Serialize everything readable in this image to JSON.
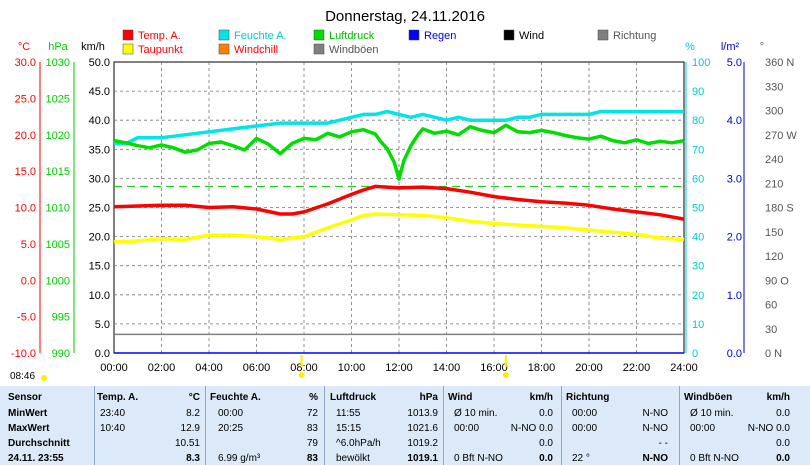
{
  "chart_data": {
    "type": "line",
    "title": "Donnerstag, 24.11.2016",
    "x_ticks": [
      "00:00",
      "02:00",
      "04:00",
      "06:00",
      "08:00",
      "10:00",
      "12:00",
      "14:00",
      "16:00",
      "18:00",
      "20:00",
      "22:00",
      "24:00"
    ],
    "xlim": [
      0,
      24
    ],
    "legend": [
      {
        "name": "Temp. A.",
        "color": "#ff0000"
      },
      {
        "name": "Feuchte A.",
        "color": "#00e5e5"
      },
      {
        "name": "Luftdruck",
        "color": "#00dd00"
      },
      {
        "name": "Regen",
        "color": "#0000ff"
      },
      {
        "name": "Wind",
        "color": "#000000"
      },
      {
        "name": "Richtung",
        "color": "#808080"
      },
      {
        "name": "Taupunkt",
        "color": "#ffff00"
      },
      {
        "name": "Windchill",
        "color": "#ff8000"
      },
      {
        "name": "Windböen",
        "color": "#808080"
      }
    ],
    "axes": {
      "temp": {
        "unit": "°C",
        "ticks": [
          "30.0",
          "25.0",
          "20.0",
          "15.0",
          "10.0",
          "5.0",
          "0.0",
          "-5.0",
          "-10.0"
        ],
        "range": [
          -10,
          30
        ],
        "color": "#ff0000"
      },
      "pressure": {
        "unit": "hPa",
        "ticks": [
          "1030",
          "1025",
          "1020",
          "1015",
          "1010",
          "1005",
          "1000",
          "995",
          "990"
        ],
        "range": [
          990,
          1030
        ],
        "color": "#00cc00"
      },
      "wind": {
        "unit": "km/h",
        "ticks": [
          "50.0",
          "45.0",
          "40.0",
          "35.0",
          "30.0",
          "25.0",
          "20.0",
          "15.0",
          "10.0",
          "5.0",
          "0.0"
        ],
        "range": [
          0,
          50
        ],
        "color": "#000000"
      },
      "humidity": {
        "unit": "%",
        "ticks": [
          "100",
          "90",
          "80",
          "70",
          "60",
          "50",
          "40",
          "30",
          "20",
          "10",
          "0"
        ],
        "range": [
          0,
          100
        ],
        "color": "#00cccc"
      },
      "rain": {
        "unit": "l/m²",
        "ticks": [
          "5.0",
          "4.0",
          "3.0",
          "2.0",
          "1.0",
          "0.0"
        ],
        "range": [
          0,
          5
        ],
        "color": "#0000cc"
      },
      "direction": {
        "unit": "°",
        "ticks": [
          "360 N",
          "330",
          "300",
          "270 W",
          "240",
          "210",
          "180 S",
          "150",
          "120",
          "90 O",
          "60",
          "30",
          "0   N"
        ],
        "range": [
          0,
          360
        ],
        "color": "#555555"
      }
    },
    "series": [
      {
        "name": "Feuchte A.",
        "axis": "humidity",
        "color": "#00e5e5",
        "x": [
          0,
          0.5,
          1,
          2,
          3,
          4,
          5,
          6,
          7,
          8,
          9,
          9.5,
          10,
          10.5,
          11,
          11.5,
          12,
          12.5,
          13,
          13.5,
          14,
          14.5,
          15,
          16,
          16.5,
          17,
          17.5,
          18,
          19,
          20,
          20.5,
          21,
          22,
          23,
          24
        ],
        "y": [
          72,
          72,
          74,
          74,
          75,
          76,
          77,
          78,
          79,
          79,
          79,
          80,
          81,
          82,
          82,
          83,
          82,
          81,
          82,
          81,
          80,
          81,
          80,
          80,
          80,
          81,
          81,
          82,
          82,
          82,
          83,
          83,
          83,
          83,
          83
        ]
      },
      {
        "name": "Luftdruck",
        "axis": "pressure",
        "color": "#00dd00",
        "x": [
          0,
          0.5,
          1,
          1.5,
          2,
          2.5,
          3,
          3.5,
          4,
          4.5,
          5,
          5.5,
          6,
          6.5,
          7,
          7.5,
          8,
          8.5,
          9,
          9.5,
          10,
          10.5,
          11,
          11.2,
          11.5,
          11.8,
          12,
          12.2,
          12.5,
          12.8,
          13,
          13.5,
          14,
          14.5,
          15,
          15.5,
          16,
          16.5,
          17,
          17.5,
          18,
          18.5,
          19,
          19.5,
          20,
          20.5,
          21,
          21.5,
          22,
          22.5,
          23,
          23.5,
          24
        ],
        "y": [
          1019.2,
          1018.9,
          1018.5,
          1018.2,
          1018.6,
          1018.2,
          1017.6,
          1017.9,
          1018.8,
          1019.0,
          1018.5,
          1017.9,
          1019.5,
          1018.7,
          1017.4,
          1018.8,
          1019.5,
          1019.3,
          1020.2,
          1019.7,
          1020.4,
          1020.7,
          1020.1,
          1019.2,
          1018.1,
          1016.2,
          1013.9,
          1016.4,
          1018.5,
          1020.0,
          1020.8,
          1020.2,
          1020.5,
          1020.0,
          1021.1,
          1020.6,
          1020.3,
          1021.3,
          1020.4,
          1020.3,
          1020.6,
          1020.3,
          1019.9,
          1019.6,
          1019.4,
          1019.8,
          1019.2,
          1018.9,
          1019.3,
          1018.8,
          1019.1,
          1018.9,
          1019.2
        ]
      },
      {
        "name": "Temp. A.",
        "axis": "temp",
        "color": "#ff0000",
        "x": [
          0,
          1,
          2,
          3,
          4,
          5,
          6,
          7,
          7.5,
          8,
          9,
          10,
          10.5,
          11,
          12,
          13,
          14,
          15,
          16,
          17,
          18,
          19,
          20,
          21,
          22,
          23,
          24
        ],
        "y": [
          10.1,
          10.2,
          10.3,
          10.3,
          10.0,
          10.1,
          9.8,
          9.1,
          9.1,
          9.4,
          10.5,
          11.8,
          12.4,
          12.9,
          12.7,
          12.8,
          12.6,
          12.1,
          11.5,
          11.1,
          10.8,
          10.6,
          10.3,
          9.8,
          9.4,
          9.0,
          8.4
        ]
      },
      {
        "name": "Taupunkt",
        "axis": "temp",
        "color": "#ffff00",
        "x": [
          0,
          1,
          2,
          3,
          4,
          5,
          6,
          7,
          8,
          9,
          10,
          10.5,
          11,
          12,
          13,
          14,
          15,
          16,
          17,
          18,
          19,
          20,
          21,
          22,
          23,
          24
        ],
        "y": [
          5.3,
          5.4,
          5.7,
          5.6,
          6.2,
          6.2,
          6.0,
          5.6,
          6.0,
          7.2,
          8.3,
          8.9,
          9.1,
          9.0,
          8.9,
          8.6,
          8.1,
          7.8,
          7.6,
          7.4,
          7.2,
          6.9,
          6.6,
          6.3,
          5.8,
          5.6
        ]
      },
      {
        "name": "Windböen",
        "axis": "wind",
        "color": "#808080",
        "x": [
          0,
          24
        ],
        "y": [
          3.2,
          3.2
        ]
      },
      {
        "name": "Regen",
        "axis": "rain",
        "color": "#0000ff",
        "x": [
          0,
          24
        ],
        "y": [
          0,
          0
        ]
      }
    ],
    "reference_lines": [
      {
        "axis": "temp",
        "value": 12.9,
        "color": "#00cc00",
        "style": "dashed"
      }
    ],
    "markers": [
      {
        "x": 7.9,
        "color": "#ffee00"
      },
      {
        "x": 16.5,
        "color": "#ffee00"
      }
    ],
    "grid": true
  },
  "footer": {
    "time": "08:46"
  },
  "stats": {
    "headers": [
      "Sensor",
      "Temp. A.",
      "°C",
      "Feuchte A.",
      "%",
      "Luftdruck",
      "hPa",
      "Wind",
      "km/h",
      "Richtung",
      "Windböen",
      "km/h"
    ],
    "rows": [
      [
        "MinWert",
        "23:40",
        "8.2",
        "00:00",
        "72",
        "11:55",
        "1013.9",
        "Ø 10 min.",
        "0.0",
        "00:00",
        "N-NO",
        "Ø 10 min.",
        "0.0"
      ],
      [
        "MaxWert",
        "10:40",
        "12.9",
        "20:25",
        "83",
        "15:15",
        "1021.6",
        "00:00",
        "N-NO 0.0",
        "00:00",
        "N-NO",
        "00:00",
        "N-NO 0.0"
      ],
      [
        "Durchschnitt",
        "",
        "10.51",
        "",
        "79",
        "^6.0hPa/h",
        "1019.2",
        "",
        "0.0",
        "",
        "- -",
        "",
        "0.0"
      ],
      [
        "24.11. 23:55",
        "",
        "8.3",
        "6.99 g/m³",
        "83",
        "bewölkt",
        "1019.1",
        "0 Bft N-NO",
        "0.0",
        "22 °",
        "N-NO",
        "0 Bft N-NO",
        "0.0"
      ]
    ]
  }
}
